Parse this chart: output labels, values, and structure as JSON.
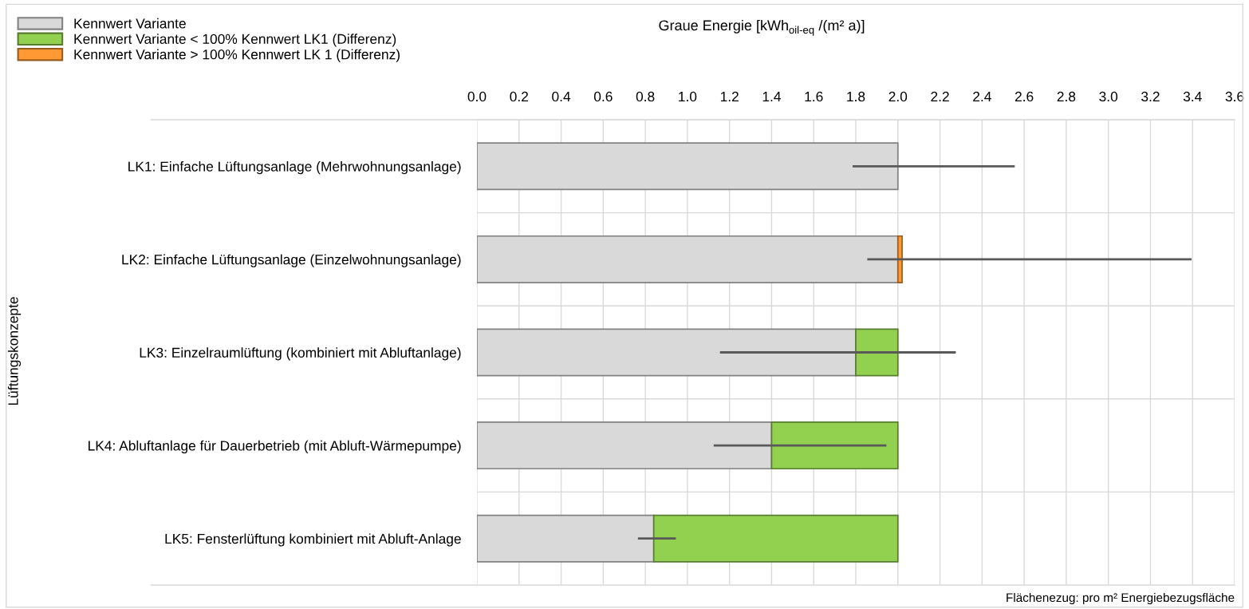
{
  "chart_data": {
    "type": "bar",
    "orientation": "horizontal",
    "stacked": true,
    "title": "Graue Energie [kWh$_{oil-eq}$ /(m² a)]",
    "ylabel": "Lüftungskonzepte",
    "categories": [
      "LK1: Einfache Lüftungsanlage (Mehrwohnungsanlage)",
      "LK2: Einfache Lüftungsanlage (Einzelwohnungsanlage)",
      "LK3: Einzelraumlüftung (kombiniert mit Abluftanlage)",
      "LK4: Abluftanlage für Dauerbetrieb (mit Abluft-Wärmepumpe)",
      "LK5: Fensterlüftung kombiniert mit Abluft-Anlage"
    ],
    "series": [
      {
        "name": "Kennwert Variante",
        "color": "#d9d9d9",
        "values": [
          2.0,
          2.0,
          1.8,
          1.4,
          0.84
        ],
        "errors": [
          [
            1.79,
            2.55
          ],
          [
            1.86,
            3.39
          ],
          [
            1.16,
            2.27
          ],
          [
            1.13,
            1.94
          ],
          [
            0.77,
            0.94
          ]
        ]
      },
      {
        "name": "Kennwert Variante < 100% Kennwert LK1 (Differenz)",
        "color": "#92d050",
        "values": [
          null,
          null,
          0.2,
          0.6,
          1.16
        ]
      },
      {
        "name": "Kennwert Variante > 100% Kennwert LK 1 (Differenz)",
        "color": "#ff9933",
        "values": [
          null,
          0.02,
          null,
          null,
          null
        ]
      }
    ],
    "xlim": [
      0,
      3.6
    ],
    "xticks": [
      {
        "value": 0,
        "label": "0.0"
      },
      {
        "value": 0.2,
        "label": "0.2"
      },
      {
        "value": 0.4,
        "label": "0.4"
      },
      {
        "value": 0.6,
        "label": "0.6"
      },
      {
        "value": 0.8,
        "label": "0.8"
      },
      {
        "value": 1.0,
        "label": "1.0"
      },
      {
        "value": 1.2,
        "label": "1.2"
      },
      {
        "value": 1.4,
        "label": "1.4"
      },
      {
        "value": 1.6,
        "label": "1.6"
      },
      {
        "value": 1.8,
        "label": "1.8"
      },
      {
        "value": 2.0,
        "label": "2.0"
      },
      {
        "value": 2.2,
        "label": "2.2"
      },
      {
        "value": 2.4,
        "label": "2.4"
      },
      {
        "value": 2.6,
        "label": "2.6"
      },
      {
        "value": 2.8,
        "label": "2.8"
      },
      {
        "value": 3.0,
        "label": "3.0"
      },
      {
        "value": 3.2,
        "label": "3.2"
      },
      {
        "value": 3.4,
        "label": "3.4"
      },
      {
        "value": 3.6,
        "label": "3.6"
      }
    ],
    "grid": true,
    "legend": "top left",
    "annotations": [
      "Flächenezug: pro m² Energiebezugsfläche"
    ]
  }
}
